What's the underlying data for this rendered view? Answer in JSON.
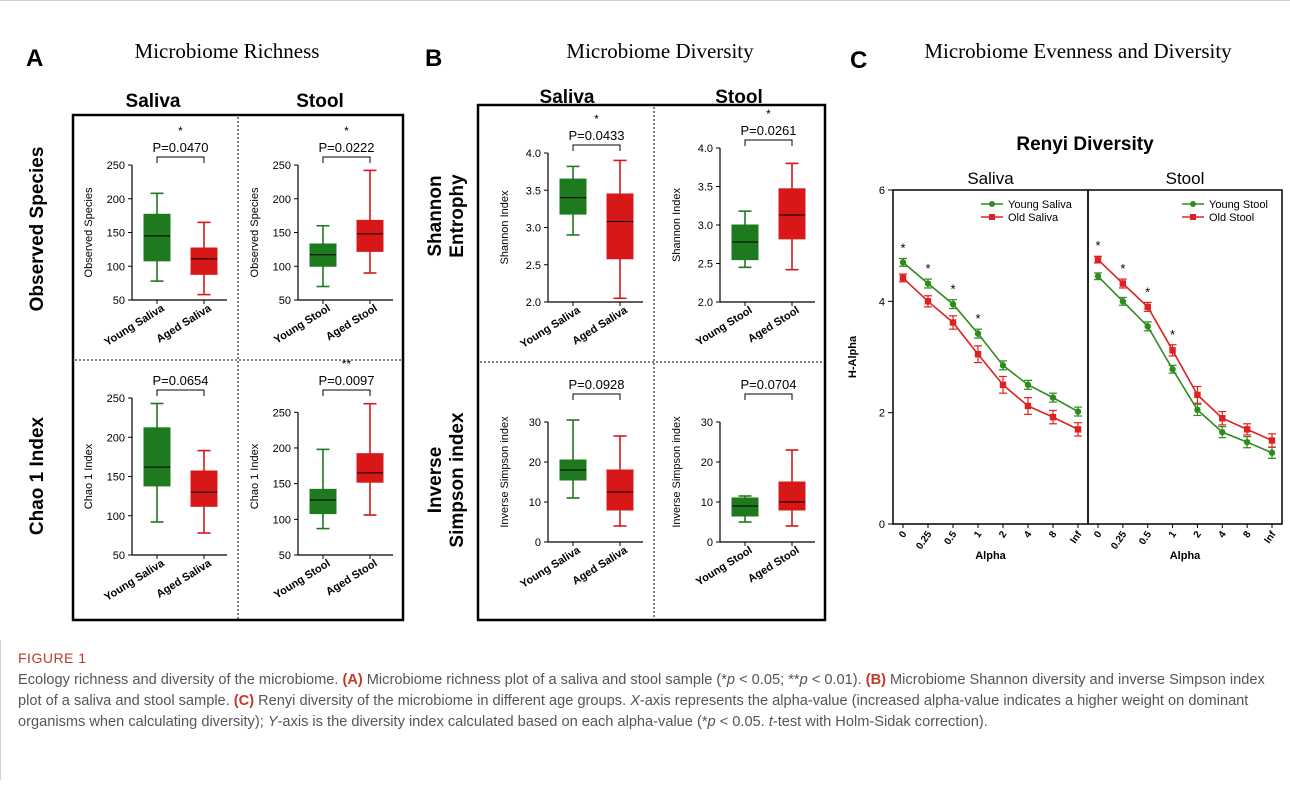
{
  "panels": {
    "A": {
      "letter": "A",
      "title": "Microbiome Richness"
    },
    "B": {
      "letter": "B",
      "title": "Microbiome Diversity"
    },
    "C": {
      "letter": "C",
      "title": "Microbiome Evenness and Diversity"
    }
  },
  "column_headers": {
    "saliva": "Saliva",
    "stool": "Stool"
  },
  "row_labels": {
    "observed_species": "Observed Species",
    "chao1": "Chao 1 Index",
    "shannon": [
      "Shannon",
      "Entrophy"
    ],
    "simpson": [
      "Inverse",
      "Simpson index"
    ]
  },
  "chart_data": [
    {
      "type": "box",
      "panel": "A",
      "row": "Observed Species",
      "column": "Saliva",
      "ylabel": "Observed Species",
      "yticks": [
        50,
        100,
        150,
        200,
        250
      ],
      "ylim": [
        50,
        250
      ],
      "categories": [
        "Young Saliva",
        "Aged Saliva"
      ],
      "boxes": [
        {
          "name": "Young Saliva",
          "min": 78,
          "q1": 108,
          "median": 145,
          "q3": 177,
          "max": 208,
          "color": "#1e7a1e"
        },
        {
          "name": "Aged Saliva",
          "min": 58,
          "q1": 88,
          "median": 111,
          "q3": 127,
          "max": 165,
          "color": "#d81818"
        }
      ],
      "pvalue": "P=0.0470",
      "significance": "*"
    },
    {
      "type": "box",
      "panel": "A",
      "row": "Observed Species",
      "column": "Stool",
      "ylabel": "Observed Species",
      "yticks": [
        50,
        100,
        150,
        200,
        250
      ],
      "ylim": [
        50,
        250
      ],
      "categories": [
        "Young Stool",
        "Aged Stool"
      ],
      "boxes": [
        {
          "name": "Young Stool",
          "min": 70,
          "q1": 100,
          "median": 117,
          "q3": 133,
          "max": 160,
          "color": "#1e7a1e"
        },
        {
          "name": "Aged Stool",
          "min": 90,
          "q1": 122,
          "median": 148,
          "q3": 168,
          "max": 242,
          "color": "#d81818"
        }
      ],
      "pvalue": "P=0.0222",
      "significance": "*"
    },
    {
      "type": "box",
      "panel": "A",
      "row": "Chao 1 Index",
      "column": "Saliva",
      "ylabel": "Chao 1 Index",
      "yticks": [
        50,
        100,
        150,
        200,
        250
      ],
      "ylim": [
        50,
        250
      ],
      "categories": [
        "Young Saliva",
        "Aged Saliva"
      ],
      "boxes": [
        {
          "name": "Young Saliva",
          "min": 92,
          "q1": 138,
          "median": 162,
          "q3": 212,
          "max": 243,
          "color": "#1e7a1e"
        },
        {
          "name": "Aged Saliva",
          "min": 78,
          "q1": 112,
          "median": 130,
          "q3": 157,
          "max": 183,
          "color": "#d81818"
        }
      ],
      "pvalue": "P=0.0654",
      "significance": ""
    },
    {
      "type": "box",
      "panel": "A",
      "row": "Chao 1 Index",
      "column": "Stool",
      "ylabel": "Chao 1 Index",
      "yticks": [
        50,
        100,
        150,
        200,
        250
      ],
      "ylim": [
        50,
        270
      ],
      "categories": [
        "Young Stool",
        "Aged Stool"
      ],
      "boxes": [
        {
          "name": "Young Stool",
          "min": 87,
          "q1": 108,
          "median": 127,
          "q3": 142,
          "max": 198,
          "color": "#1e7a1e"
        },
        {
          "name": "Aged Stool",
          "min": 106,
          "q1": 152,
          "median": 165,
          "q3": 192,
          "max": 262,
          "color": "#d81818"
        }
      ],
      "pvalue": "P=0.0097",
      "significance": "**"
    },
    {
      "type": "box",
      "panel": "B",
      "row": "Shannon Entrophy",
      "column": "Saliva",
      "ylabel": "Shannon Index",
      "yticks": [
        "2.0",
        "2.5",
        "3.0",
        "3.5",
        "4.0"
      ],
      "ylim": [
        2.0,
        4.0
      ],
      "categories": [
        "Young Saliva",
        "Aged Saliva"
      ],
      "boxes": [
        {
          "name": "Young Saliva",
          "min": 2.9,
          "q1": 3.18,
          "median": 3.4,
          "q3": 3.65,
          "max": 3.82,
          "color": "#1e7a1e"
        },
        {
          "name": "Aged Saliva",
          "min": 2.05,
          "q1": 2.58,
          "median": 3.08,
          "q3": 3.45,
          "max": 3.9,
          "color": "#d81818"
        }
      ],
      "pvalue": "P=0.0433",
      "significance": "*"
    },
    {
      "type": "box",
      "panel": "B",
      "row": "Shannon Entrophy",
      "column": "Stool",
      "ylabel": "Shannon Index",
      "yticks": [
        "2.0",
        "2.5",
        "3.0",
        "3.5",
        "4.0"
      ],
      "ylim": [
        2.0,
        4.0
      ],
      "categories": [
        "Young Stool",
        "Aged Stool"
      ],
      "boxes": [
        {
          "name": "Young Stool",
          "min": 2.45,
          "q1": 2.55,
          "median": 2.78,
          "q3": 3.0,
          "max": 3.18,
          "color": "#1e7a1e"
        },
        {
          "name": "Aged Stool",
          "min": 2.42,
          "q1": 2.82,
          "median": 3.13,
          "q3": 3.47,
          "max": 3.8,
          "color": "#d81818"
        }
      ],
      "pvalue": "P=0.0261",
      "significance": "*"
    },
    {
      "type": "box",
      "panel": "B",
      "row": "Inverse Simpson index",
      "column": "Saliva",
      "ylabel": "Inverse Simpson index",
      "yticks": [
        0,
        10,
        20,
        30
      ],
      "ylim": [
        0,
        35
      ],
      "categories": [
        "Young Saliva",
        "Aged Saliva"
      ],
      "boxes": [
        {
          "name": "Young Saliva",
          "min": 11,
          "q1": 15.5,
          "median": 18,
          "q3": 20.5,
          "max": 30.5,
          "color": "#1e7a1e"
        },
        {
          "name": "Aged Saliva",
          "min": 4,
          "q1": 8,
          "median": 12.5,
          "q3": 18,
          "max": 26.5,
          "color": "#d81818"
        }
      ],
      "pvalue": "P=0.0928",
      "significance": ""
    },
    {
      "type": "box",
      "panel": "B",
      "row": "Inverse Simpson index",
      "column": "Stool",
      "ylabel": "Inverse Simpson index",
      "yticks": [
        0,
        10,
        20,
        30
      ],
      "ylim": [
        0,
        35
      ],
      "categories": [
        "Young Stool",
        "Aged Stool"
      ],
      "boxes": [
        {
          "name": "Young Stool",
          "min": 5,
          "q1": 6.5,
          "median": 9,
          "q3": 11,
          "max": 11.5,
          "color": "#1e7a1e"
        },
        {
          "name": "Aged Stool",
          "min": 4,
          "q1": 8,
          "median": 10,
          "q3": 15,
          "max": 23,
          "color": "#d81818"
        }
      ],
      "pvalue": "P=0.0704",
      "significance": ""
    },
    {
      "type": "line",
      "panel": "C",
      "title": "Renyi Diversity",
      "xlabel": "Alpha",
      "ylabel": "H-Alpha",
      "x": [
        "0",
        "0.25",
        "0.5",
        "1",
        "2",
        "4",
        "8",
        "Inf"
      ],
      "yticks": [
        0,
        2,
        4,
        6
      ],
      "ylim": [
        0,
        6
      ],
      "facets": [
        {
          "name": "Saliva",
          "series": [
            {
              "name": "Young Saliva",
              "color": "#2e8b1e",
              "marker": "circle",
              "values": [
                4.7,
                4.32,
                3.95,
                3.42,
                2.85,
                2.5,
                2.27,
                2.02
              ],
              "err": [
                0.07,
                0.08,
                0.08,
                0.08,
                0.08,
                0.08,
                0.08,
                0.08
              ]
            },
            {
              "name": "Old Saliva",
              "color": "#e02020",
              "marker": "square",
              "values": [
                4.42,
                4.0,
                3.62,
                3.05,
                2.5,
                2.12,
                1.92,
                1.7
              ],
              "err": [
                0.07,
                0.1,
                0.12,
                0.15,
                0.15,
                0.15,
                0.12,
                0.12
              ]
            }
          ],
          "significant": [
            "0",
            "0.25",
            "0.5",
            "1"
          ]
        },
        {
          "name": "Stool",
          "series": [
            {
              "name": "Young Stool",
              "color": "#2e8b1e",
              "marker": "circle",
              "values": [
                4.45,
                4.0,
                3.55,
                2.78,
                2.05,
                1.65,
                1.47,
                1.28
              ],
              "err": [
                0.06,
                0.07,
                0.08,
                0.07,
                0.1,
                0.1,
                0.1,
                0.1
              ]
            },
            {
              "name": "Old Stool",
              "color": "#e02020",
              "marker": "square",
              "values": [
                4.75,
                4.32,
                3.9,
                3.12,
                2.32,
                1.9,
                1.7,
                1.5
              ],
              "err": [
                0.06,
                0.08,
                0.08,
                0.1,
                0.15,
                0.12,
                0.1,
                0.12
              ]
            }
          ],
          "significant": [
            "0",
            "0.25",
            "0.5",
            "1"
          ]
        }
      ]
    }
  ],
  "caption": {
    "label": "FIGURE 1",
    "text_parts": [
      {
        "t": "Ecology richness and diversity of the microbiome. "
      },
      {
        "t": "(A)",
        "b": true
      },
      {
        "t": " Microbiome richness plot of a saliva and stool sample (*"
      },
      {
        "t": "p",
        "i": true
      },
      {
        "t": " < 0.05; **"
      },
      {
        "t": "p",
        "i": true
      },
      {
        "t": " < 0.01). "
      },
      {
        "t": "(B)",
        "b": true
      },
      {
        "t": " Microbiome Shannon diversity and inverse Simpson index plot of a saliva and stool sample. "
      },
      {
        "t": "(C)",
        "b": true
      },
      {
        "t": " Renyi diversity of the microbiome in different age groups. "
      },
      {
        "t": "X",
        "i": true
      },
      {
        "t": "-axis represents the alpha-value (increased alpha-value indicates a higher weight on dominant organisms when calculating diversity); "
      },
      {
        "t": "Y",
        "i": true
      },
      {
        "t": "-axis is the diversity index calculated based on each alpha-value (*"
      },
      {
        "t": "p",
        "i": true
      },
      {
        "t": " < 0.05. "
      },
      {
        "t": "t",
        "i": true
      },
      {
        "t": "-test with Holm-Sidak correction)."
      }
    ]
  }
}
